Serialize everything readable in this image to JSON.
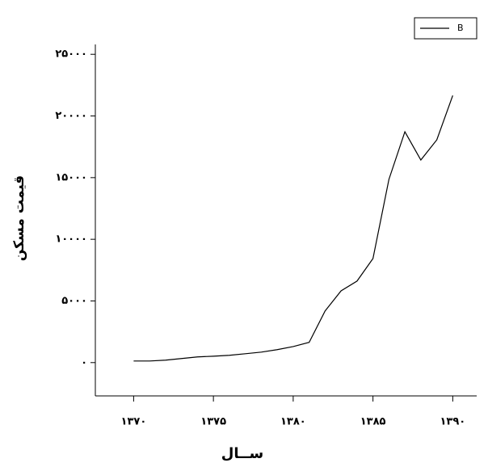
{
  "chart_data": {
    "type": "line",
    "x_label": "ســال",
    "y_label": "قیمت مسکن",
    "x": [
      1370,
      1371,
      1372,
      1373,
      1374,
      1375,
      1376,
      1377,
      1378,
      1379,
      1380,
      1381,
      1382,
      1383,
      1384,
      1385,
      1386,
      1387,
      1388,
      1389,
      1390
    ],
    "series": [
      {
        "name": "B",
        "color": "#000000",
        "values": [
          130,
          130,
          200,
          330,
          460,
          520,
          590,
          720,
          850,
          1050,
          1300,
          1640,
          4190,
          5820,
          6610,
          8440,
          14860,
          18720,
          16430,
          18060,
          21660
        ]
      }
    ],
    "xlim": [
      1367.6,
      1391.5
    ],
    "xticks": [
      {
        "value": 1370,
        "label": "۱۳۷۰"
      },
      {
        "value": 1375,
        "label": "۱۳۷۵"
      },
      {
        "value": 1380,
        "label": "۱۳۸۰"
      },
      {
        "value": 1385,
        "label": "۱۳۸۵"
      },
      {
        "value": 1390,
        "label": "۱۳۹۰"
      }
    ],
    "ylim": [
      -2700,
      25800
    ],
    "yticks": [
      {
        "value": 0,
        "label": "۰"
      },
      {
        "value": 5000,
        "label": "۵۰۰۰"
      },
      {
        "value": 10000,
        "label": "۱۰۰۰۰"
      },
      {
        "value": 15000,
        "label": "۱۵۰۰۰"
      },
      {
        "value": 20000,
        "label": "۲۰۰۰۰"
      },
      {
        "value": 25000,
        "label": "۲۵۰۰۰"
      }
    ],
    "legend": "top-right"
  }
}
